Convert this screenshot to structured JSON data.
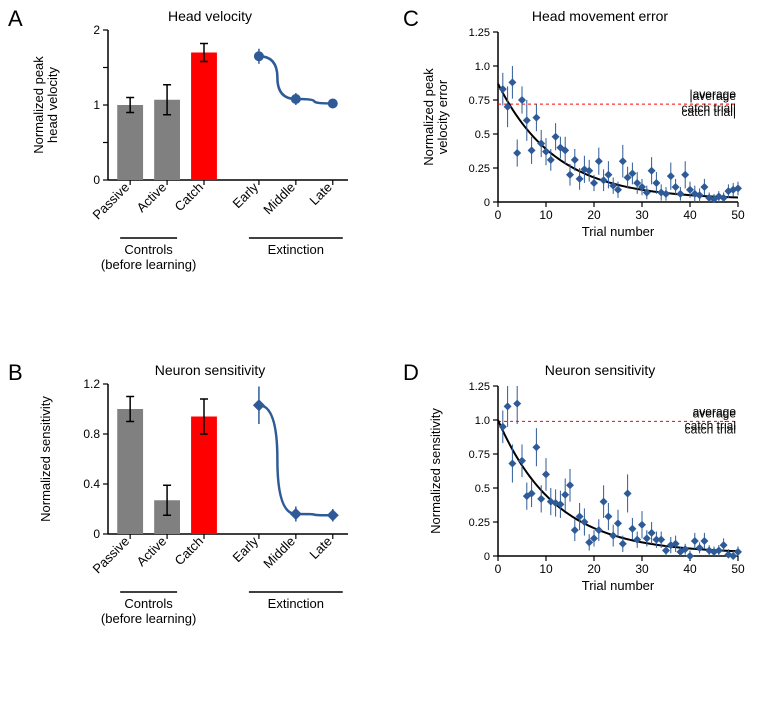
{
  "colors": {
    "gray_bar": "#808080",
    "red_bar": "#ff0000",
    "blue": "#2e5b97",
    "black": "#000000",
    "red_dash": "#ff0000",
    "bg": "#ffffff"
  },
  "fonts": {
    "panel_label_size": 22,
    "title_size": 14,
    "axis_label_size": 13,
    "tick_size": 11
  },
  "panel_labels": {
    "A": "A",
    "B": "B",
    "C": "C",
    "D": "D"
  },
  "A": {
    "title": "Head velocity",
    "ylabel": "Normalized peak\nhead velocity",
    "ylim": [
      0,
      2
    ],
    "yticks": [
      0,
      0.5,
      1,
      1.5,
      2
    ],
    "ytick_labels": [
      "0",
      "",
      "1",
      "",
      "2"
    ],
    "bars": [
      {
        "label": "Passive",
        "value": 1.0,
        "err": 0.1,
        "color": "#808080"
      },
      {
        "label": "Active",
        "value": 1.07,
        "err": 0.2,
        "color": "#808080"
      },
      {
        "label": "Catch",
        "value": 1.7,
        "err": 0.12,
        "color": "#ff0000"
      }
    ],
    "line": {
      "labels": [
        "Early",
        "Middle",
        "Late"
      ],
      "values": [
        1.65,
        1.08,
        1.02
      ],
      "err": [
        0.1,
        0.08,
        0.06
      ],
      "color": "#2e5b97",
      "marker": "circle"
    },
    "group_labels": {
      "left": "Controls\n(before learning)",
      "right": "Extinction"
    }
  },
  "B": {
    "title": "Neuron sensitivity",
    "ylabel": "Normalized sensitivity",
    "ylim": [
      0,
      1.2
    ],
    "yticks": [
      0,
      0.4,
      0.8,
      1.2
    ],
    "ytick_labels": [
      "0",
      "0.4",
      "0.8",
      "1.2"
    ],
    "bars": [
      {
        "label": "Passive",
        "value": 1.0,
        "err": 0.1,
        "color": "#808080"
      },
      {
        "label": "Active",
        "value": 0.27,
        "err": 0.12,
        "color": "#808080"
      },
      {
        "label": "Catch",
        "value": 0.94,
        "err": 0.14,
        "color": "#ff0000"
      }
    ],
    "line": {
      "labels": [
        "Early",
        "Middle",
        "Late"
      ],
      "values": [
        1.03,
        0.16,
        0.15
      ],
      "err": [
        0.15,
        0.06,
        0.05
      ],
      "color": "#2e5b97",
      "marker": "diamond"
    },
    "group_labels": {
      "left": "Controls\n(before learning)",
      "right": "Extinction"
    }
  },
  "C": {
    "title": "Head movement error",
    "xlabel": "Trial number",
    "ylabel": "Normalized peak\nvelocity error",
    "xlim": [
      0,
      50
    ],
    "xticks": [
      0,
      10,
      20,
      30,
      40,
      50
    ],
    "ylim": [
      0,
      1.25
    ],
    "yticks": [
      0,
      0.25,
      0.5,
      0.75,
      1.0,
      1.25
    ],
    "ytick_labels": [
      "0",
      "0.25",
      "0.5",
      "0.75",
      "1.0",
      "1.25"
    ],
    "ref_line": {
      "y": 0.72,
      "label": "|average\ncatch trial|",
      "color": "#ff0000"
    },
    "marker": "diamond",
    "marker_color": "#2e5b97",
    "fit_color": "#000000",
    "points": [
      {
        "x": 1,
        "y": 0.83,
        "e": 0.12
      },
      {
        "x": 2,
        "y": 0.7,
        "e": 0.15
      },
      {
        "x": 3,
        "y": 0.88,
        "e": 0.12
      },
      {
        "x": 4,
        "y": 0.36,
        "e": 0.1
      },
      {
        "x": 5,
        "y": 0.75,
        "e": 0.1
      },
      {
        "x": 6,
        "y": 0.6,
        "e": 0.15
      },
      {
        "x": 7,
        "y": 0.38,
        "e": 0.1
      },
      {
        "x": 8,
        "y": 0.62,
        "e": 0.1
      },
      {
        "x": 9,
        "y": 0.43,
        "e": 0.1
      },
      {
        "x": 10,
        "y": 0.37,
        "e": 0.1
      },
      {
        "x": 11,
        "y": 0.31,
        "e": 0.08
      },
      {
        "x": 12,
        "y": 0.48,
        "e": 0.1
      },
      {
        "x": 13,
        "y": 0.4,
        "e": 0.08
      },
      {
        "x": 14,
        "y": 0.38,
        "e": 0.1
      },
      {
        "x": 15,
        "y": 0.2,
        "e": 0.08
      },
      {
        "x": 16,
        "y": 0.31,
        "e": 0.08
      },
      {
        "x": 17,
        "y": 0.17,
        "e": 0.08
      },
      {
        "x": 18,
        "y": 0.24,
        "e": 0.1
      },
      {
        "x": 19,
        "y": 0.23,
        "e": 0.08
      },
      {
        "x": 20,
        "y": 0.14,
        "e": 0.06
      },
      {
        "x": 21,
        "y": 0.3,
        "e": 0.1
      },
      {
        "x": 22,
        "y": 0.16,
        "e": 0.08
      },
      {
        "x": 23,
        "y": 0.2,
        "e": 0.1
      },
      {
        "x": 24,
        "y": 0.12,
        "e": 0.06
      },
      {
        "x": 25,
        "y": 0.09,
        "e": 0.06
      },
      {
        "x": 26,
        "y": 0.3,
        "e": 0.12
      },
      {
        "x": 27,
        "y": 0.18,
        "e": 0.08
      },
      {
        "x": 28,
        "y": 0.21,
        "e": 0.08
      },
      {
        "x": 29,
        "y": 0.14,
        "e": 0.08
      },
      {
        "x": 30,
        "y": 0.11,
        "e": 0.06
      },
      {
        "x": 31,
        "y": 0.07,
        "e": 0.05
      },
      {
        "x": 32,
        "y": 0.23,
        "e": 0.1
      },
      {
        "x": 33,
        "y": 0.14,
        "e": 0.08
      },
      {
        "x": 34,
        "y": 0.07,
        "e": 0.06
      },
      {
        "x": 35,
        "y": 0.06,
        "e": 0.05
      },
      {
        "x": 36,
        "y": 0.19,
        "e": 0.1
      },
      {
        "x": 37,
        "y": 0.11,
        "e": 0.06
      },
      {
        "x": 38,
        "y": 0.06,
        "e": 0.05
      },
      {
        "x": 39,
        "y": 0.2,
        "e": 0.1
      },
      {
        "x": 40,
        "y": 0.09,
        "e": 0.06
      },
      {
        "x": 41,
        "y": 0.06,
        "e": 0.06
      },
      {
        "x": 42,
        "y": 0.05,
        "e": 0.05
      },
      {
        "x": 43,
        "y": 0.11,
        "e": 0.06
      },
      {
        "x": 44,
        "y": 0.03,
        "e": 0.04
      },
      {
        "x": 45,
        "y": 0.02,
        "e": 0.04
      },
      {
        "x": 46,
        "y": 0.04,
        "e": 0.04
      },
      {
        "x": 47,
        "y": 0.03,
        "e": 0.04
      },
      {
        "x": 48,
        "y": 0.08,
        "e": 0.05
      },
      {
        "x": 49,
        "y": 0.09,
        "e": 0.05
      },
      {
        "x": 50,
        "y": 0.1,
        "e": 0.05
      }
    ],
    "fit": {
      "A": 0.85,
      "tau": 12,
      "b": 0.02
    }
  },
  "D": {
    "title": "Neuron sensitivity",
    "xlabel": "Trial number",
    "ylabel": "Normalized sensitivity",
    "xlim": [
      0,
      50
    ],
    "xticks": [
      0,
      10,
      20,
      30,
      40,
      50
    ],
    "ylim": [
      0,
      1.25
    ],
    "yticks": [
      0,
      0.25,
      0.5,
      0.75,
      1.0,
      1.25
    ],
    "ytick_labels": [
      "0",
      "0.25",
      "0.5",
      "0.75",
      "1.0",
      "1.25"
    ],
    "ref_line": {
      "y": 0.99,
      "label": "average\ncatch trial",
      "color": "#ff0000"
    },
    "marker": "diamond",
    "marker_color": "#2e5b97",
    "fit_color": "#000000",
    "points": [
      {
        "x": 1,
        "y": 0.95,
        "e": 0.12
      },
      {
        "x": 2,
        "y": 1.1,
        "e": 0.15
      },
      {
        "x": 3,
        "y": 0.68,
        "e": 0.14
      },
      {
        "x": 4,
        "y": 1.12,
        "e": 0.15
      },
      {
        "x": 5,
        "y": 0.7,
        "e": 0.12
      },
      {
        "x": 6,
        "y": 0.44,
        "e": 0.1
      },
      {
        "x": 7,
        "y": 0.46,
        "e": 0.1
      },
      {
        "x": 8,
        "y": 0.8,
        "e": 0.14
      },
      {
        "x": 9,
        "y": 0.42,
        "e": 0.1
      },
      {
        "x": 10,
        "y": 0.6,
        "e": 0.12
      },
      {
        "x": 11,
        "y": 0.4,
        "e": 0.1
      },
      {
        "x": 12,
        "y": 0.39,
        "e": 0.1
      },
      {
        "x": 13,
        "y": 0.38,
        "e": 0.1
      },
      {
        "x": 14,
        "y": 0.45,
        "e": 0.12
      },
      {
        "x": 15,
        "y": 0.52,
        "e": 0.12
      },
      {
        "x": 16,
        "y": 0.19,
        "e": 0.08
      },
      {
        "x": 17,
        "y": 0.29,
        "e": 0.1
      },
      {
        "x": 18,
        "y": 0.25,
        "e": 0.1
      },
      {
        "x": 19,
        "y": 0.1,
        "e": 0.06
      },
      {
        "x": 20,
        "y": 0.13,
        "e": 0.06
      },
      {
        "x": 21,
        "y": 0.19,
        "e": 0.08
      },
      {
        "x": 22,
        "y": 0.4,
        "e": 0.12
      },
      {
        "x": 23,
        "y": 0.29,
        "e": 0.1
      },
      {
        "x": 24,
        "y": 0.15,
        "e": 0.08
      },
      {
        "x": 25,
        "y": 0.24,
        "e": 0.1
      },
      {
        "x": 26,
        "y": 0.09,
        "e": 0.06
      },
      {
        "x": 27,
        "y": 0.46,
        "e": 0.14
      },
      {
        "x": 28,
        "y": 0.2,
        "e": 0.08
      },
      {
        "x": 29,
        "y": 0.12,
        "e": 0.06
      },
      {
        "x": 30,
        "y": 0.23,
        "e": 0.1
      },
      {
        "x": 31,
        "y": 0.13,
        "e": 0.06
      },
      {
        "x": 32,
        "y": 0.17,
        "e": 0.08
      },
      {
        "x": 33,
        "y": 0.12,
        "e": 0.06
      },
      {
        "x": 34,
        "y": 0.12,
        "e": 0.06
      },
      {
        "x": 35,
        "y": 0.04,
        "e": 0.04
      },
      {
        "x": 36,
        "y": 0.08,
        "e": 0.06
      },
      {
        "x": 37,
        "y": 0.09,
        "e": 0.06
      },
      {
        "x": 38,
        "y": 0.03,
        "e": 0.04
      },
      {
        "x": 39,
        "y": 0.05,
        "e": 0.04
      },
      {
        "x": 40,
        "y": 0.0,
        "e": 0.04
      },
      {
        "x": 41,
        "y": 0.11,
        "e": 0.06
      },
      {
        "x": 42,
        "y": 0.06,
        "e": 0.04
      },
      {
        "x": 43,
        "y": 0.11,
        "e": 0.06
      },
      {
        "x": 44,
        "y": 0.04,
        "e": 0.04
      },
      {
        "x": 45,
        "y": 0.03,
        "e": 0.04
      },
      {
        "x": 46,
        "y": 0.04,
        "e": 0.04
      },
      {
        "x": 47,
        "y": 0.08,
        "e": 0.05
      },
      {
        "x": 48,
        "y": 0.01,
        "e": 0.04
      },
      {
        "x": 49,
        "y": 0.0,
        "e": 0.04
      },
      {
        "x": 50,
        "y": 0.03,
        "e": 0.04
      }
    ],
    "fit": {
      "A": 0.98,
      "tau": 12,
      "b": 0.02
    }
  }
}
